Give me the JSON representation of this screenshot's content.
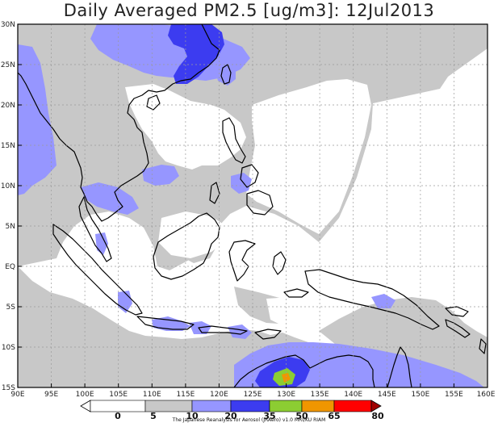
{
  "title": "Daily Averaged PM2.5 [ug/m3]: 12Jul2013",
  "credit": "The Japanese Reanalysis for Aerosol (JRAero) v1.0 MRI/KU RIAM",
  "map": {
    "lon_range": [
      90,
      160
    ],
    "lat_range": [
      -15,
      30
    ],
    "lon_ticks": [
      "90E",
      "95E",
      "100E",
      "105E",
      "110E",
      "115E",
      "120E",
      "125E",
      "130E",
      "135E",
      "140E",
      "145E",
      "150E",
      "155E",
      "160E"
    ],
    "lat_ticks": [
      "30N",
      "25N",
      "20N",
      "15N",
      "10N",
      "5N",
      "EQ",
      "5S",
      "10S",
      "15S"
    ]
  },
  "colorbar": {
    "boundaries": [
      "0",
      "5",
      "10",
      "20",
      "35",
      "50",
      "65",
      "80"
    ],
    "colors": [
      "#ffffff",
      "#c8c8c8",
      "#9696ff",
      "#3c3cf0",
      "#8ccd32",
      "#f09600",
      "#ff0000",
      "#a00000"
    ]
  },
  "colors": {
    "level_5_10": "#c8c8c8",
    "level_10_20": "#9696ff",
    "level_20_35": "#3c3cf0",
    "level_35_50": "#8ccd32",
    "level_50_65": "#f09600",
    "level_65_80": "#ff0000",
    "level_80_plus": "#a00000"
  }
}
